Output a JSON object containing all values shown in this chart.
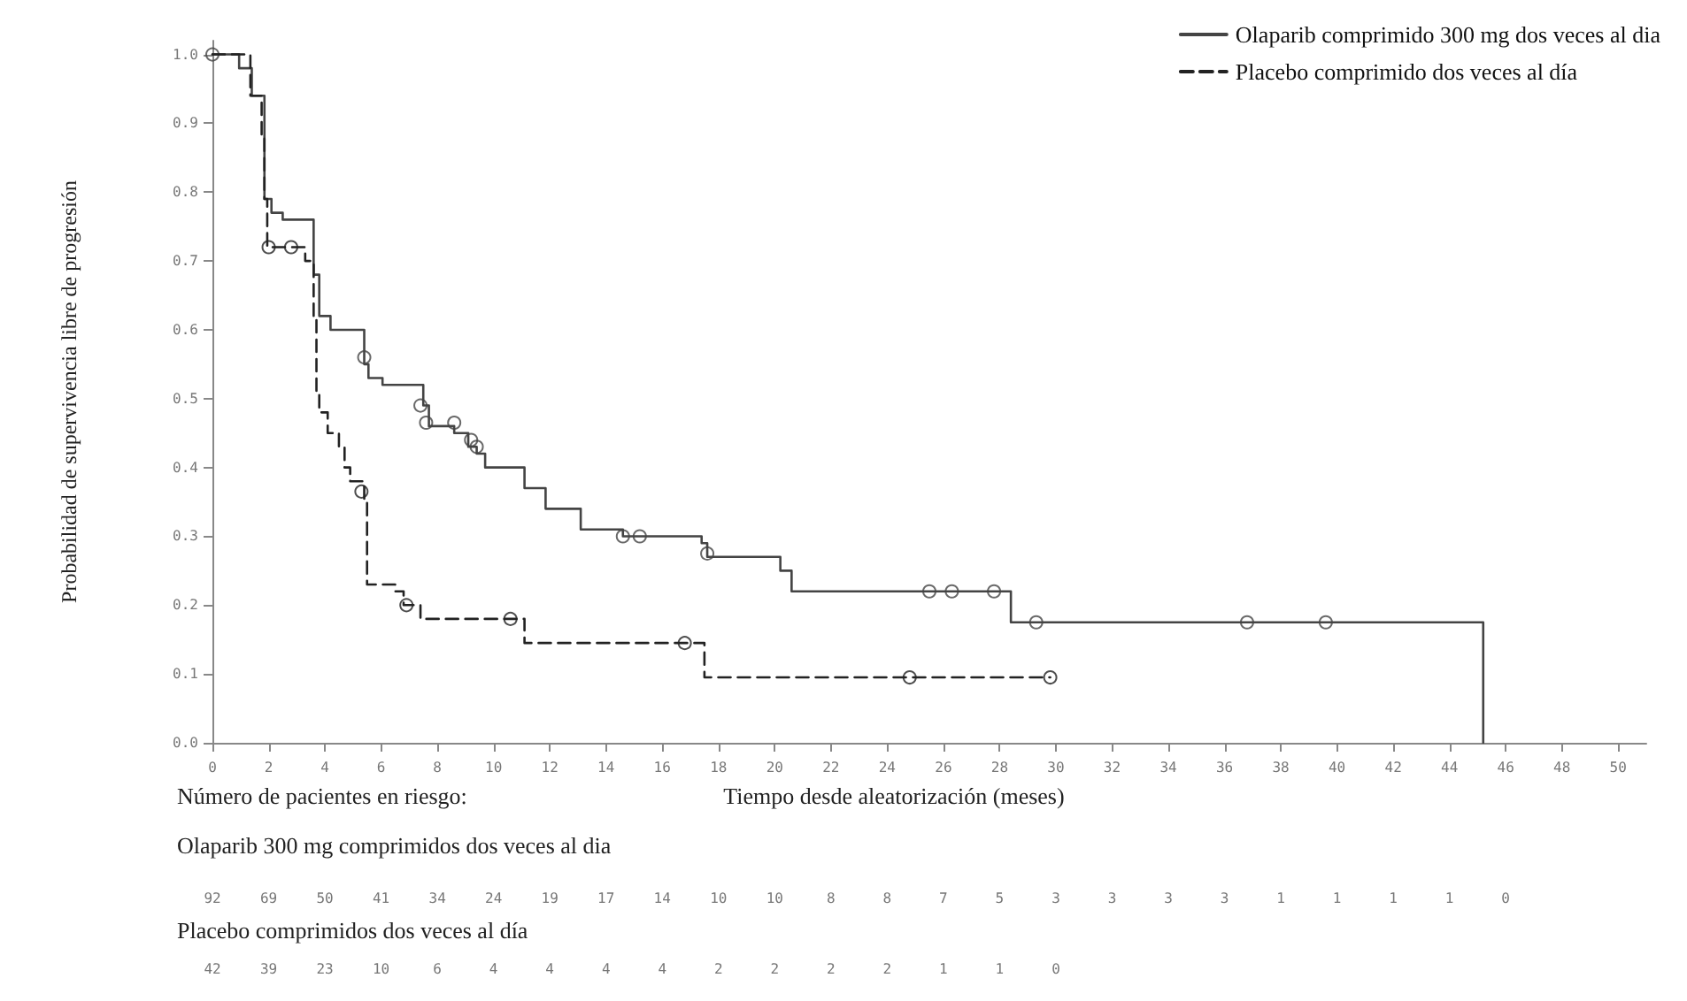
{
  "chart_data": {
    "type": "step",
    "ylabel": "Probabilidad de supervivencia libre de progresión",
    "xlabel": "Tiempo desde aleatorización (meses)",
    "xlim": [
      0,
      51
    ],
    "xticks": [
      0,
      2,
      4,
      6,
      8,
      10,
      12,
      14,
      16,
      18,
      20,
      22,
      24,
      26,
      28,
      30,
      32,
      34,
      36,
      38,
      40,
      42,
      44,
      46,
      48,
      50
    ],
    "ylim": [
      0,
      1.02
    ],
    "yticks": [
      {
        "value": 0,
        "label": "0.0"
      },
      {
        "value": 0.1,
        "label": "0.1"
      },
      {
        "value": 0.2,
        "label": "0.2"
      },
      {
        "value": 0.3,
        "label": "0.3"
      },
      {
        "value": 0.4,
        "label": "0.4"
      },
      {
        "value": 0.5,
        "label": "0.5"
      },
      {
        "value": 0.6,
        "label": "0.6"
      },
      {
        "value": 0.7,
        "label": "0.7"
      },
      {
        "value": 0.8,
        "label": "0.8"
      },
      {
        "value": 0.9,
        "label": "0.9"
      },
      {
        "value": 1,
        "label": "1.0"
      }
    ],
    "grid": false,
    "legend": "top right",
    "marker": "none",
    "series": [
      {
        "name": "Olaparib comprimido 300 mg dos veces al dia",
        "color": "#444444",
        "line_style": "solid",
        "x": [
          0,
          0.95,
          1.4,
          1.85,
          2.1,
          2.5,
          3.6,
          3.8,
          4.2,
          5.4,
          5.55,
          6.05,
          7.5,
          7.7,
          8.6,
          9.1,
          9.4,
          9.7,
          11.1,
          11.85,
          13.1,
          14.6,
          17.4,
          17.6,
          20.2,
          20.6,
          28.4,
          45.2
        ],
        "values": [
          1,
          0.98,
          0.94,
          0.79,
          0.77,
          0.76,
          0.68,
          0.62,
          0.6,
          0.55,
          0.53,
          0.52,
          0.49,
          0.46,
          0.45,
          0.43,
          0.42,
          0.4,
          0.37,
          0.34,
          0.31,
          0.3,
          0.29,
          0.27,
          0.25,
          0.22,
          0.175,
          0
        ]
      },
      {
        "name": "Placebo comprimido dos veces al día",
        "color": "#222222",
        "line_style": "dashed",
        "x": [
          0,
          1.35,
          1.75,
          1.85,
          1.95,
          3.3,
          3.6,
          3.7,
          3.8,
          4.1,
          4.5,
          4.7,
          4.9,
          5.4,
          5.5,
          6.5,
          6.8,
          7.4,
          11.1,
          17.5,
          29.8
        ],
        "values": [
          1,
          0.94,
          0.88,
          0.79,
          0.72,
          0.7,
          0.62,
          0.51,
          0.48,
          0.45,
          0.43,
          0.4,
          0.38,
          0.35,
          0.23,
          0.22,
          0.2,
          0.18,
          0.145,
          0.095,
          0.095
        ]
      },
      {
        "type": "scatter",
        "marker": "circle",
        "color": "#444444",
        "x": [
          0,
          5.4,
          7.4,
          7.6,
          8.6,
          9.2,
          9.4,
          14.6,
          15.2,
          17.6,
          25.5,
          26.3,
          27.8,
          29.3,
          36.8,
          39.6
        ],
        "values": [
          1,
          0.56,
          0.49,
          0.465,
          0.465,
          0.44,
          0.43,
          0.3,
          0.3,
          0.275,
          0.22,
          0.22,
          0.22,
          0.175,
          0.175,
          0.175
        ]
      },
      {
        "type": "scatter",
        "marker": "circle",
        "color": "#222222",
        "x": [
          2.0,
          2.8,
          5.3,
          6.9,
          10.6,
          16.8,
          24.8,
          29.8
        ],
        "values": [
          0.72,
          0.72,
          0.365,
          0.2,
          0.18,
          0.145,
          0.095,
          0.095
        ]
      }
    ],
    "annotations": [
      "Número de pacientes en riesgo:",
      "Olaparib 300 mg comprimidos dos veces al dia",
      "92 69 50 41 34 24 19 17 14 10 10 8 8 7 5 3 3 3 3 1 1 1 1 0",
      "Placebo comprimidos dos veces al día",
      "42 39 23 10 6 4 4 4 4 2 2 2 2 1 1 0"
    ]
  }
}
